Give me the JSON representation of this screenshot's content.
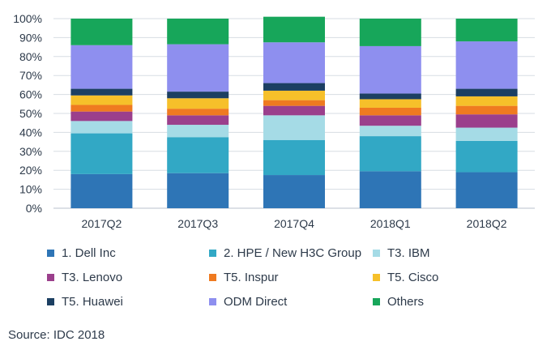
{
  "chart_data": {
    "type": "bar",
    "stacked": true,
    "categories": [
      "2017Q2",
      "2017Q3",
      "2017Q4",
      "2018Q1",
      "2018Q2"
    ],
    "yticks": [
      "0%",
      "10%",
      "20%",
      "30%",
      "40%",
      "50%",
      "60%",
      "70%",
      "80%",
      "90%",
      "100%"
    ],
    "ylim": [
      0,
      100
    ],
    "grid": true,
    "legend_position": "bottom",
    "series": [
      {
        "name": "1. Dell Inc",
        "color": "#2e75b6",
        "values": [
          18,
          18.5,
          17.5,
          19.5,
          19
        ]
      },
      {
        "name": "2. HPE / New H3C Group",
        "color": "#32a8c5",
        "values": [
          21.5,
          19,
          18.5,
          18.5,
          16.5
        ]
      },
      {
        "name": "T3. IBM",
        "color": "#a5dbe6",
        "values": [
          6.5,
          6.5,
          13,
          5.5,
          7
        ]
      },
      {
        "name": "T3. Lenovo",
        "color": "#9b3f8c",
        "values": [
          5,
          5,
          5,
          5.5,
          7
        ]
      },
      {
        "name": "T5. Inspur",
        "color": "#ef7a20",
        "values": [
          3.5,
          3.5,
          3,
          4,
          4.5
        ]
      },
      {
        "name": "T5. Cisco",
        "color": "#f6c02a",
        "values": [
          5,
          5.5,
          5,
          4.5,
          5
        ]
      },
      {
        "name": "T5. Huawei",
        "color": "#1c3f62",
        "values": [
          3.5,
          3.5,
          4,
          3,
          4
        ]
      },
      {
        "name": "ODM Direct",
        "color": "#8e8fef",
        "values": [
          23,
          25,
          21.5,
          25,
          25
        ]
      },
      {
        "name": "Others",
        "color": "#17a65a",
        "values": [
          14,
          13.5,
          13.5,
          14.5,
          12
        ]
      }
    ]
  },
  "source": "Source: IDC 2018"
}
